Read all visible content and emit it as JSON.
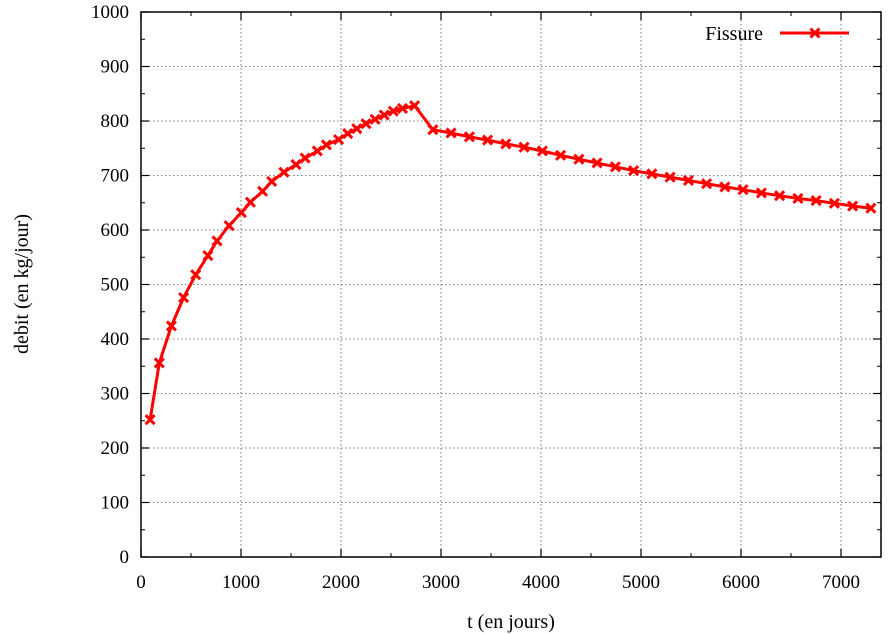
{
  "chart_data": {
    "type": "line",
    "title": "",
    "xlabel": "t (en jours)",
    "ylabel": "debit (en kg/jour)",
    "xlim": [
      0,
      7400
    ],
    "ylim": [
      0,
      1000
    ],
    "xticks": [
      0,
      1000,
      2000,
      3000,
      4000,
      5000,
      6000,
      7000
    ],
    "yticks": [
      0,
      100,
      200,
      300,
      400,
      500,
      600,
      700,
      800,
      900,
      1000
    ],
    "grid": true,
    "legend_position": "top-right",
    "series": [
      {
        "name": "Fissure",
        "color": "#ff0000",
        "marker": "x",
        "x": [
          91,
          183,
          304,
          426,
          547,
          669,
          760,
          881,
          1003,
          1094,
          1216,
          1307,
          1429,
          1550,
          1641,
          1763,
          1854,
          1976,
          2067,
          2158,
          2250,
          2341,
          2432,
          2523,
          2615,
          2736,
          2919,
          3101,
          3284,
          3466,
          3649,
          3831,
          4014,
          4196,
          4379,
          4561,
          4744,
          4926,
          5109,
          5291,
          5474,
          5656,
          5839,
          6021,
          6204,
          6386,
          6569,
          6751,
          6934,
          7116,
          7299
        ],
        "y": [
          252,
          356,
          424,
          476,
          518,
          553,
          580,
          608,
          632,
          651,
          671,
          689,
          706,
          720,
          732,
          745,
          756,
          766,
          777,
          786,
          795,
          803,
          811,
          818,
          823,
          828,
          784,
          778,
          771,
          765,
          758,
          752,
          745,
          737,
          730,
          723,
          716,
          709,
          703,
          697,
          691,
          685,
          679,
          674,
          668,
          663,
          658,
          654,
          649,
          644,
          640
        ]
      }
    ]
  }
}
